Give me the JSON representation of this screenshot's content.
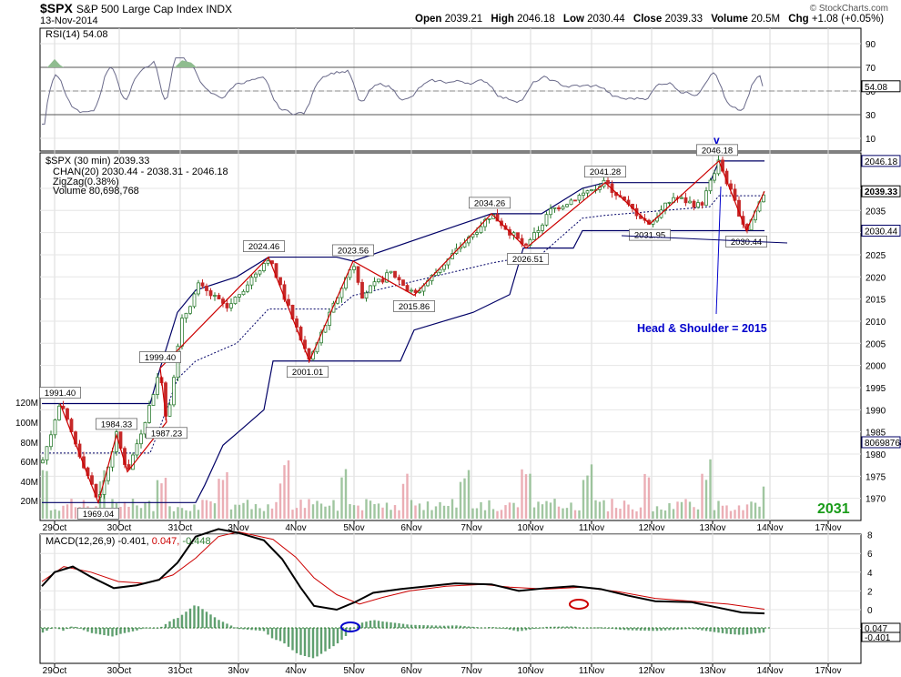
{
  "header": {
    "symbol": "$SPX",
    "description": "S&P 500 Large Cap Index INDX",
    "date": "13-Nov-2014",
    "open_label": "Open",
    "open": "2039.21",
    "high_label": "High",
    "high": "2046.18",
    "low_label": "Low",
    "low": "2030.44",
    "close_label": "Close",
    "close": "2039.33",
    "volume_label": "Volume",
    "volume": "20.5M",
    "chg_label": "Chg",
    "chg": "+1.08 (+0.05%)",
    "brand": "© StockCharts.com"
  },
  "rsi_panel": {
    "legend": "RSI(14) 54.08",
    "ticks": [
      "90",
      "70",
      "50",
      "30",
      "10"
    ],
    "current": "54.08"
  },
  "price_panel": {
    "legend": [
      "$SPX (30 min) 2039.33",
      "CHAN(20) 2030.44 - 2038.31 - 2046.18",
      "ZigZag(0.38%)",
      "Volume 80,698,768"
    ],
    "price_ticks": [
      "2040",
      "2035",
      "2030",
      "2025",
      "2020",
      "2015",
      "2010",
      "2005",
      "2000",
      "1995",
      "1990",
      "1985",
      "1980",
      "1975",
      "1970"
    ],
    "volume_ticks": [
      "120M",
      "100M",
      "80M",
      "60M",
      "40M",
      "20M"
    ],
    "right_tags": [
      "2046.18",
      "2039.33",
      "2030.44",
      "80698768"
    ],
    "pivot_labels": [
      "1991.40",
      "1969.04",
      "1984.33",
      "1987.23",
      "1999.40",
      "2024.46",
      "2001.01",
      "2023.56",
      "2015.86",
      "2034.26",
      "2026.51",
      "2041.28",
      "2031.95",
      "2046.18",
      "2030.44"
    ],
    "annotation": "Head & Shoulder = 2015",
    "marker": "v",
    "big_label": "2031",
    "colors": {
      "zigzag": "#cc0000",
      "channel": "#000066",
      "up": "#2e7d32",
      "down": "#c62828",
      "annotation": "#0000cc",
      "big_label": "#1a9c1a"
    }
  },
  "macd_panel": {
    "legend_black": "MACD(12,26,9) -0.401,",
    "legend_red": " 0.047,",
    "legend_green": " -0.448",
    "ticks": [
      "8",
      "6",
      "4",
      "2",
      "0",
      "-2"
    ],
    "right_tags": [
      "0.047",
      "-0.401"
    ]
  },
  "x_axis": {
    "labels": [
      "29Oct",
      "30Oct",
      "31Oct",
      "3Nov",
      "4Nov",
      "5Nov",
      "6Nov",
      "7Nov",
      "10Nov",
      "11Nov",
      "12Nov",
      "13Nov",
      "14Nov",
      "17Nov"
    ]
  },
  "chart_data": {
    "type": "line",
    "title": "$SPX S&P 500 Large Cap Index INDX",
    "interval": "30 min",
    "x": [
      "29Oct",
      "30Oct",
      "31Oct",
      "3Nov",
      "4Nov",
      "5Nov",
      "6Nov",
      "7Nov",
      "10Nov",
      "11Nov",
      "12Nov",
      "13Nov"
    ],
    "ylim": [
      1965,
      2048
    ],
    "series": [
      {
        "name": "$SPX",
        "values": [
          1991.4,
          1984.33,
          1999.4,
          2024.46,
          2001.01,
          2023.56,
          2015.86,
          2034.26,
          2026.51,
          2041.28,
          2031.95,
          2039.33
        ]
      }
    ],
    "zigzag_pivots": [
      {
        "x": "29Oct",
        "y": 1991.4
      },
      {
        "x": "29Oct",
        "y": 1969.04
      },
      {
        "x": "30Oct",
        "y": 1984.33
      },
      {
        "x": "30Oct",
        "y": 1987.23
      },
      {
        "x": "31Oct",
        "y": 1999.4
      },
      {
        "x": "3Nov",
        "y": 2024.46
      },
      {
        "x": "4Nov",
        "y": 2001.01
      },
      {
        "x": "5Nov",
        "y": 2023.56
      },
      {
        "x": "6Nov",
        "y": 2015.86
      },
      {
        "x": "7Nov",
        "y": 2034.26
      },
      {
        "x": "10Nov",
        "y": 2026.51
      },
      {
        "x": "11Nov",
        "y": 2041.28
      },
      {
        "x": "12Nov",
        "y": 2031.95
      },
      {
        "x": "13Nov",
        "y": 2046.18
      },
      {
        "x": "13Nov",
        "y": 2030.44
      }
    ],
    "rsi": {
      "value": 54.08,
      "range": [
        0,
        100
      ],
      "levels": [
        70,
        30
      ]
    },
    "macd": {
      "macd": -0.401,
      "signal": 0.047,
      "histogram": -0.448,
      "ylim": [
        -3,
        9
      ]
    }
  }
}
